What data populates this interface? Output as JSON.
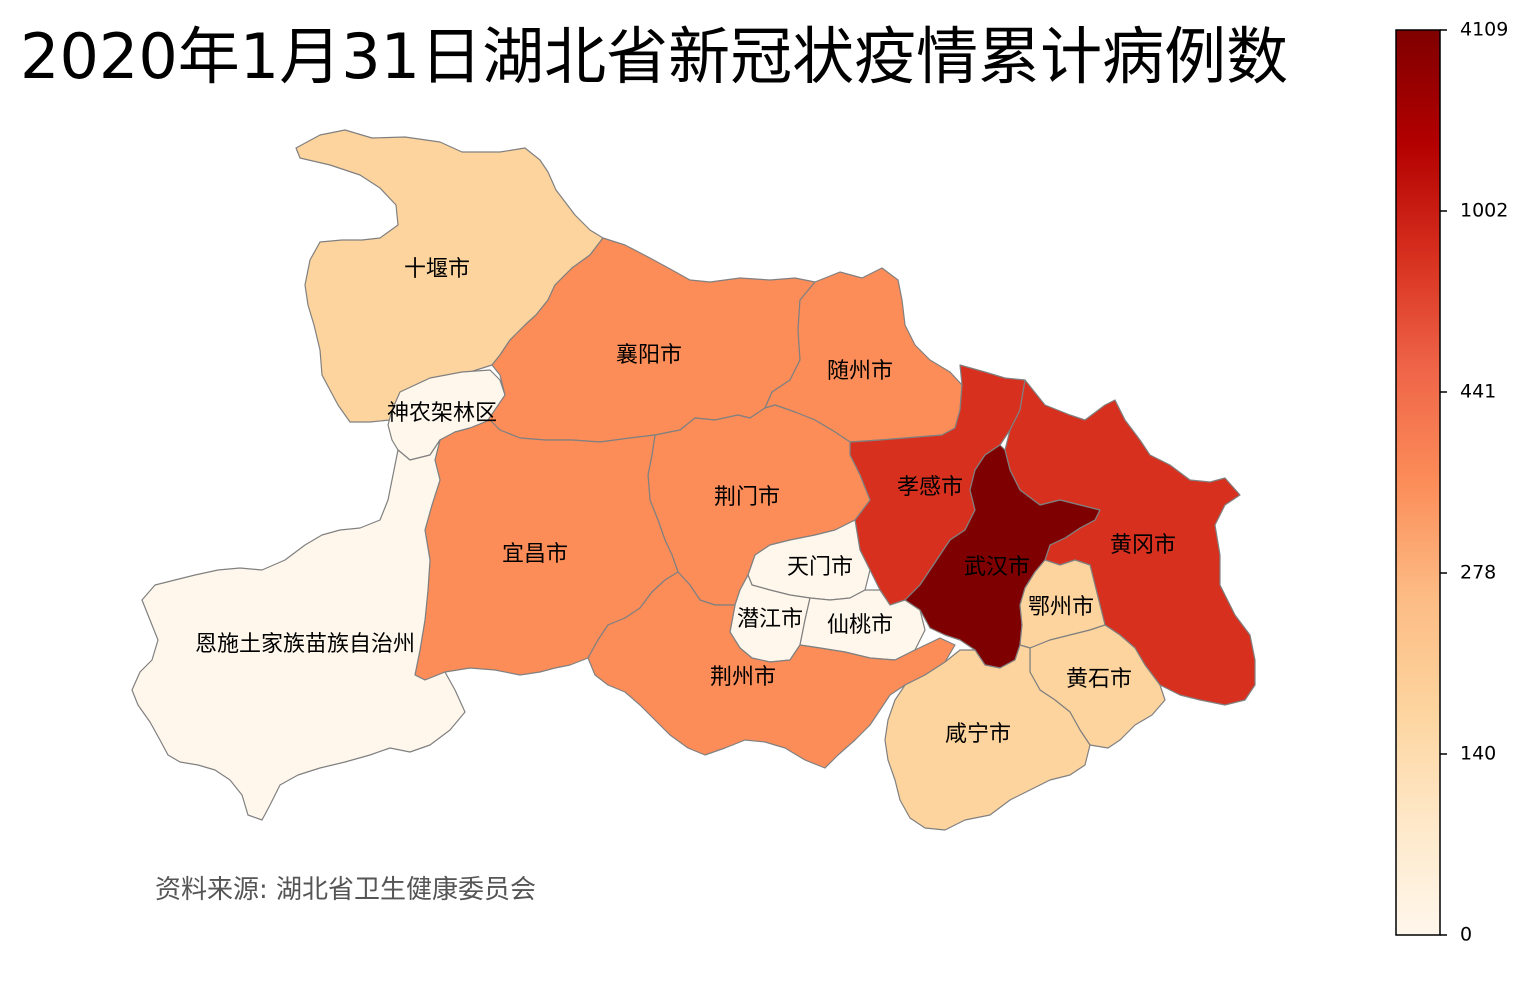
{
  "title": "2020年1月31日湖北省新冠状疫情累计病例数",
  "source_note": "资料来源:  湖北省卫生健康委员会",
  "colormap": {
    "name": "OrRd",
    "stops": [
      "#fff7ec",
      "#fee8c8",
      "#fdd49e",
      "#fdbb84",
      "#fc8d59",
      "#ef6548",
      "#d7301f",
      "#b30000",
      "#7f0000"
    ]
  },
  "colorbar": {
    "ticks": [
      "4109",
      "1002",
      "441",
      "278",
      "140",
      "0"
    ]
  },
  "regions": [
    {
      "name": "十堰市",
      "label": "十堰市",
      "fill": "#fdd49e",
      "icon": ""
    },
    {
      "name": "襄阳市",
      "label": "襄阳市",
      "fill": "#fc8d59"
    },
    {
      "name": "随州市",
      "label": "随州市",
      "fill": "#fc8d59"
    },
    {
      "name": "神农架林区",
      "label": "神农架林区",
      "fill": "#fff7ec"
    },
    {
      "name": "孝感市",
      "label": "孝感市",
      "fill": "#d7301f"
    },
    {
      "name": "黄冈市",
      "label": "黄冈市",
      "fill": "#d7301f"
    },
    {
      "name": "荆门市",
      "label": "荆门市",
      "fill": "#fc8d59"
    },
    {
      "name": "宜昌市",
      "label": "宜昌市",
      "fill": "#fc8d59"
    },
    {
      "name": "武汉市",
      "label": "武汉市",
      "fill": "#7f0000"
    },
    {
      "name": "天门市",
      "label": "天门市",
      "fill": "#fff7ec"
    },
    {
      "name": "鄂州市",
      "label": "鄂州市",
      "fill": "#fdd49e"
    },
    {
      "name": "潜江市",
      "label": "潜江市",
      "fill": "#fff7ec"
    },
    {
      "name": "仙桃市",
      "label": "仙桃市",
      "fill": "#fff7ec"
    },
    {
      "name": "恩施土家族苗族自治州",
      "label": "恩施土家族苗族自治州",
      "fill": "#fff7ec"
    },
    {
      "name": "荆州市",
      "label": "荆州市",
      "fill": "#fc8d59"
    },
    {
      "name": "黄石市",
      "label": "黄石市",
      "fill": "#fdd49e"
    },
    {
      "name": "咸宁市",
      "label": "咸宁市",
      "fill": "#fdd49e"
    }
  ]
}
